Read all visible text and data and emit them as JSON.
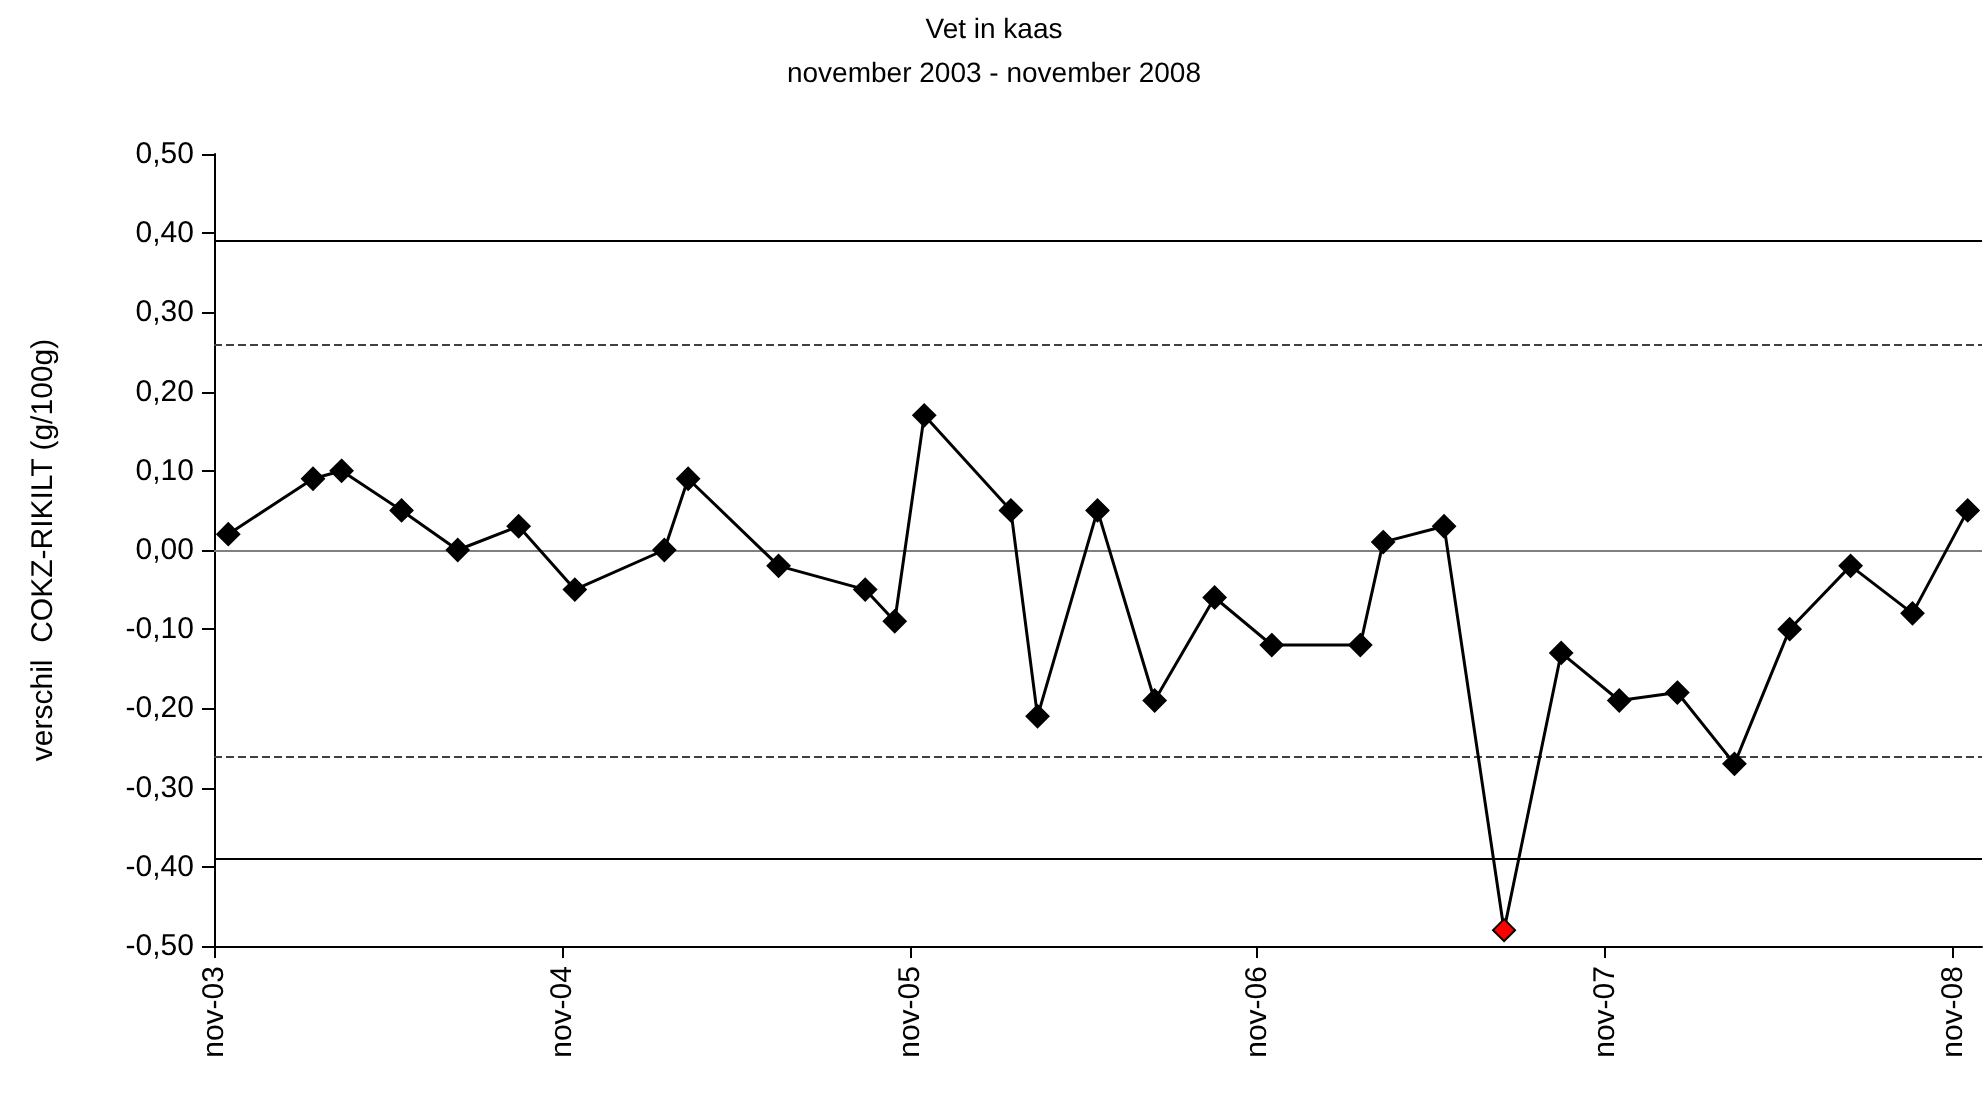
{
  "chart_data": {
    "type": "line",
    "title": "Vet in kaas",
    "subtitle": "november 2003 - november 2008",
    "ylabel": "verschil  COKZ-RIKILT (g/100g)",
    "x": [
      "2003-11-16",
      "2004-02-13",
      "2004-03-14",
      "2004-05-16",
      "2004-07-14",
      "2004-09-16",
      "2004-11-14",
      "2005-02-16",
      "2005-03-13",
      "2005-06-16",
      "2005-09-15",
      "2005-10-16",
      "2005-11-16",
      "2006-02-15",
      "2006-03-15",
      "2006-05-17",
      "2006-07-16",
      "2006-09-17",
      "2006-11-16",
      "2007-02-17",
      "2007-03-13",
      "2007-05-16",
      "2007-07-18",
      "2007-09-16",
      "2007-11-16",
      "2008-01-16",
      "2008-03-16",
      "2008-05-13",
      "2008-07-16",
      "2008-09-19",
      "2008-11-16"
    ],
    "values": [
      0.02,
      0.09,
      0.1,
      0.05,
      0.0,
      0.03,
      -0.05,
      0.0,
      0.09,
      -0.02,
      -0.05,
      -0.09,
      0.17,
      0.05,
      -0.21,
      0.05,
      -0.19,
      -0.06,
      -0.12,
      -0.12,
      0.01,
      0.03,
      -0.48,
      -0.13,
      -0.19,
      -0.18,
      -0.27,
      -0.1,
      -0.02,
      -0.08,
      0.05
    ],
    "color": "#000000",
    "colors": [
      "#000000",
      "#000000",
      "#000000",
      "#000000",
      "#000000",
      "#000000",
      "#000000",
      "#000000",
      "#000000",
      "#000000",
      "#000000",
      "#000000",
      "#000000",
      "#000000",
      "#000000",
      "#000000",
      "#000000",
      "#000000",
      "#000000",
      "#000000",
      "#000000",
      "#000000",
      "#ff0000",
      "#000000",
      "#000000",
      "#000000",
      "#000000",
      "#000000",
      "#000000",
      "#000000",
      "#000000"
    ],
    "marker": "diamond",
    "line_style": "solid",
    "xlim": [
      "2003-11-01",
      "2008-12-01"
    ],
    "xticks": [
      {
        "value": "2003-11-01",
        "label": "nov-03"
      },
      {
        "value": "2004-11-01",
        "label": "nov-04"
      },
      {
        "value": "2005-11-01",
        "label": "nov-05"
      },
      {
        "value": "2006-11-01",
        "label": "nov-06"
      },
      {
        "value": "2007-11-01",
        "label": "nov-07"
      },
      {
        "value": "2008-11-01",
        "label": "nov-08"
      }
    ],
    "ylim": [
      -0.5,
      0.5
    ],
    "yticks": [
      {
        "value": -0.5,
        "label": "-0,50"
      },
      {
        "value": -0.4,
        "label": "-0,40"
      },
      {
        "value": -0.3,
        "label": "-0,30"
      },
      {
        "value": -0.2,
        "label": "-0,20"
      },
      {
        "value": -0.1,
        "label": "-0,10"
      },
      {
        "value": 0,
        "label": "0,00"
      },
      {
        "value": 0.1,
        "label": "0,10"
      },
      {
        "value": 0.2,
        "label": "0,20"
      },
      {
        "value": 0.3,
        "label": "0,30"
      },
      {
        "value": 0.4,
        "label": "0,40"
      },
      {
        "value": 0.5,
        "label": "0,50"
      }
    ],
    "ref_lines": [
      {
        "axis": "y",
        "value": 0.39,
        "line_style": "solid",
        "color": "#000000"
      },
      {
        "axis": "y",
        "value": 0.26,
        "line_style": "dashed",
        "color": "#404040"
      },
      {
        "axis": "y",
        "value": 0,
        "line_style": "solid",
        "color": "#808080"
      },
      {
        "axis": "y",
        "value": -0.26,
        "line_style": "dashed",
        "color": "#404040"
      },
      {
        "axis": "y",
        "value": -0.39,
        "line_style": "solid",
        "color": "#000000"
      }
    ]
  }
}
